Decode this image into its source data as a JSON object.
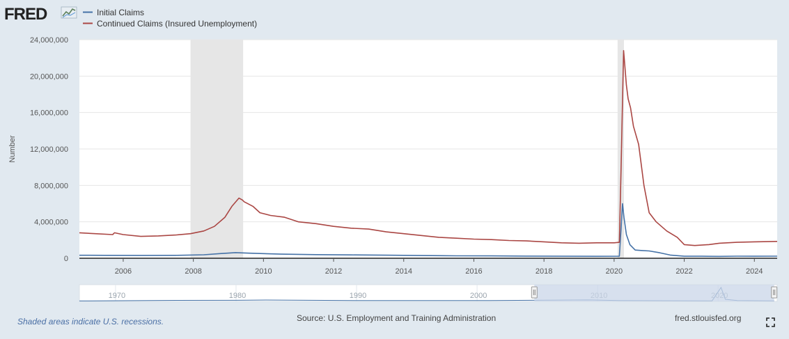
{
  "logo": {
    "text": "FRED"
  },
  "source_text": "Source: U.S. Employment and Training Administration",
  "recession_note": "Shaded areas indicate U.S. recessions.",
  "site_link": "fred.stlouisfed.org",
  "icons": {
    "fullscreen": "fullscreen-icon",
    "logo_chart": "fred-logo-graph-icon"
  },
  "colors": {
    "background": "#e1e9f0",
    "plot_bg": "#ffffff",
    "initial": "#4572a7",
    "continued": "#aa4643",
    "recession": "#e6e6e6",
    "navigator_fill": "#c9d5e8"
  },
  "chart_data": {
    "type": "line",
    "title": "",
    "xlabel": "",
    "ylabel": "Number",
    "xlim": [
      2004.75,
      2024.65
    ],
    "ylim": [
      0,
      24000000
    ],
    "yticks": [
      0,
      4000000,
      8000000,
      12000000,
      16000000,
      20000000,
      24000000
    ],
    "ytick_labels": [
      "0",
      "4,000,000",
      "8,000,000",
      "12,000,000",
      "16,000,000",
      "20,000,000",
      "24,000,000"
    ],
    "xticks": [
      2006,
      2008,
      2010,
      2012,
      2014,
      2016,
      2018,
      2020,
      2022,
      2024
    ],
    "xtick_labels": [
      "2006",
      "2008",
      "2010",
      "2012",
      "2014",
      "2016",
      "2018",
      "2020",
      "2022",
      "2024"
    ],
    "grid": true,
    "legend_position": "top-left",
    "recessions": [
      [
        2007.92,
        2009.42
      ],
      [
        2020.1,
        2020.28
      ]
    ],
    "series": [
      {
        "name": "Initial Claims",
        "color": "#4572a7",
        "x": [
          2004.75,
          2005.5,
          2006.5,
          2007.5,
          2008.3,
          2008.8,
          2009.2,
          2009.6,
          2010.5,
          2011.5,
          2012.5,
          2013.5,
          2014.5,
          2015.5,
          2016.5,
          2017.5,
          2018.5,
          2019.5,
          2020.15,
          2020.2,
          2020.24,
          2020.28,
          2020.35,
          2020.45,
          2020.6,
          2020.8,
          2021.0,
          2021.3,
          2021.6,
          2022.0,
          2022.5,
          2023.0,
          2023.5,
          2024.0,
          2024.65
        ],
        "y": [
          330000,
          320000,
          310000,
          320000,
          380000,
          520000,
          620000,
          560000,
          450000,
          400000,
          370000,
          340000,
          300000,
          270000,
          260000,
          240000,
          220000,
          215000,
          220000,
          3300000,
          6000000,
          4500000,
          2600000,
          1500000,
          900000,
          850000,
          800000,
          600000,
          350000,
          220000,
          220000,
          210000,
          230000,
          220000,
          230000
        ]
      },
      {
        "name": "Continued Claims (Insured Unemployment)",
        "color": "#aa4643",
        "x": [
          2004.75,
          2005.2,
          2005.7,
          2005.75,
          2006.0,
          2006.5,
          2007.0,
          2007.5,
          2007.92,
          2008.3,
          2008.6,
          2008.9,
          2009.1,
          2009.3,
          2009.4,
          2009.45,
          2009.5,
          2009.7,
          2009.9,
          2010.2,
          2010.6,
          2011.0,
          2011.5,
          2012.0,
          2012.5,
          2013.0,
          2013.5,
          2014.0,
          2014.5,
          2015.0,
          2015.5,
          2016.0,
          2016.5,
          2017.0,
          2017.5,
          2018.0,
          2018.5,
          2019.0,
          2019.5,
          2020.0,
          2020.15,
          2020.2,
          2020.27,
          2020.35,
          2020.4,
          2020.47,
          2020.55,
          2020.7,
          2020.85,
          2021.0,
          2021.2,
          2021.5,
          2021.8,
          2022.0,
          2022.3,
          2022.7,
          2023.0,
          2023.5,
          2024.0,
          2024.65
        ],
        "y": [
          2800000,
          2700000,
          2600000,
          2800000,
          2600000,
          2400000,
          2450000,
          2550000,
          2700000,
          3000000,
          3500000,
          4500000,
          5700000,
          6600000,
          6400000,
          6200000,
          6100000,
          5700000,
          5000000,
          4700000,
          4500000,
          4000000,
          3800000,
          3500000,
          3300000,
          3200000,
          2900000,
          2700000,
          2500000,
          2300000,
          2200000,
          2100000,
          2050000,
          1950000,
          1900000,
          1800000,
          1700000,
          1650000,
          1700000,
          1700000,
          1750000,
          10000000,
          22800000,
          19000000,
          17500000,
          16500000,
          14500000,
          12500000,
          8000000,
          5000000,
          4000000,
          3000000,
          2300000,
          1500000,
          1400000,
          1500000,
          1650000,
          1750000,
          1800000,
          1850000
        ]
      }
    ],
    "navigator": {
      "xlim": [
        1967,
        2024.9
      ],
      "ticks": [
        1970,
        1980,
        1990,
        2000,
        2010,
        2020
      ],
      "tick_labels": [
        "1970",
        "1980",
        "1990",
        "2000",
        "2010",
        "2020"
      ],
      "selection": [
        2004.75,
        2024.65
      ]
    }
  }
}
